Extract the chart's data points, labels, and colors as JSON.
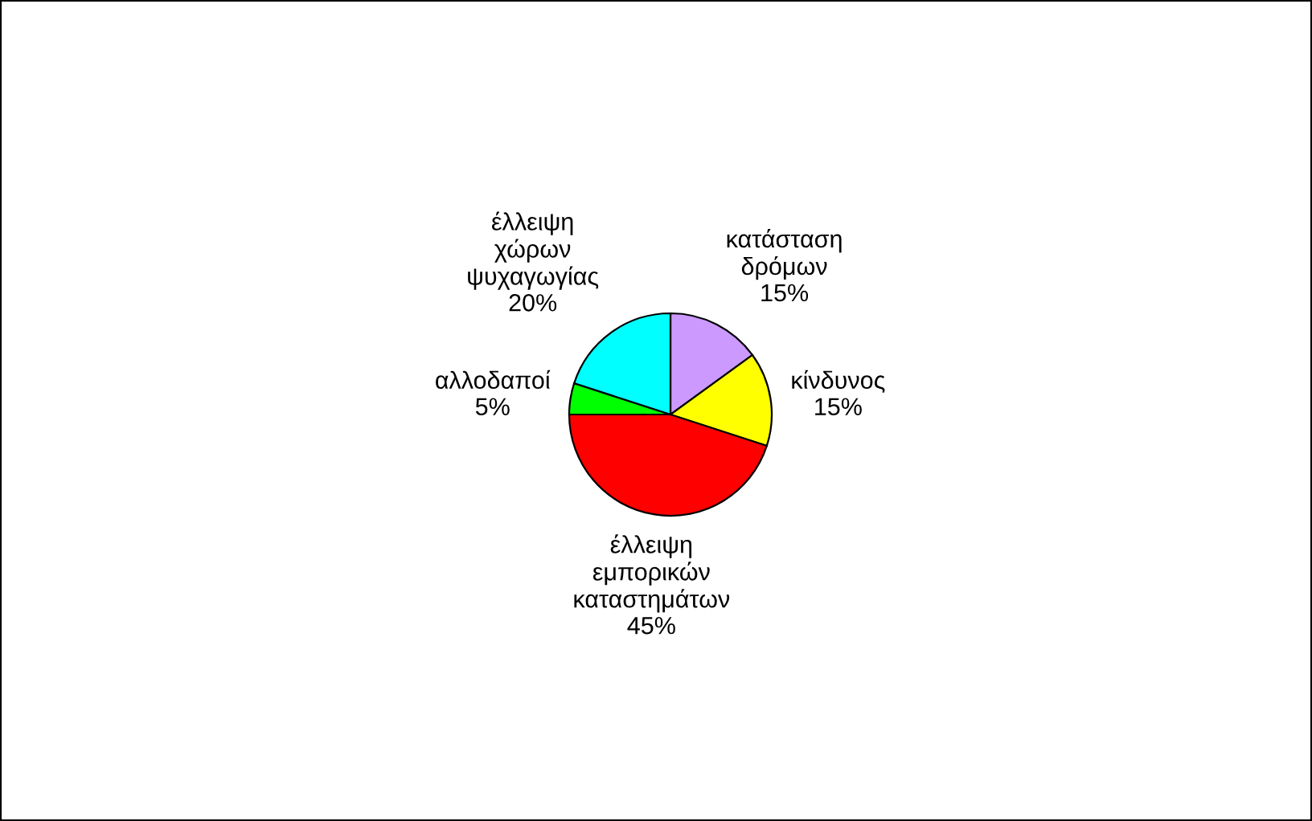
{
  "chart_data": {
    "type": "pie",
    "categories": [
      "κατάσταση δρόμων",
      "κίνδυνος",
      "έλλειψη εμπορικών καταστημάτων",
      "αλλοδαποί",
      "έλλειψη χώρων ψυχαγωγίας"
    ],
    "values": [
      15,
      15,
      45,
      5,
      20
    ],
    "value_labels": [
      "15%",
      "15%",
      "45%",
      "5%",
      "20%"
    ],
    "colors": [
      "#cc99ff",
      "#ffff00",
      "#ff0000",
      "#00ff00",
      "#00ffff"
    ],
    "legend": false
  }
}
